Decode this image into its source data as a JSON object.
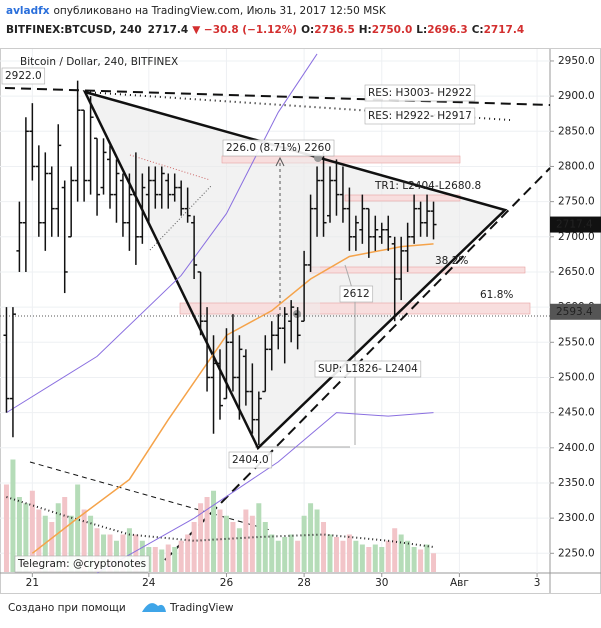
{
  "header": {
    "author": "avladfx",
    "published": "опубликовано на TradingView.com, Июль 31, 2017 12:50 MSK",
    "symbol": "BITFINEX:BTCUSD, 240",
    "last": "2717.4",
    "change": "▼ −30.8 (−1.12%)",
    "o_label": "O:",
    "o": "2736.5",
    "h_label": "H:",
    "h": "2750.0",
    "l_label": "L:",
    "l": "2696.3",
    "c_label": "C:",
    "c": "2717.4"
  },
  "footer": {
    "made_with": "Создано при помощи",
    "brand": "TradingView"
  },
  "chart_data": {
    "type": "ohlc",
    "title": "Bitcoin / Dollar, 240, BITFINEX",
    "x": [
      1,
      2,
      3,
      4,
      5,
      6,
      7,
      8,
      9,
      10,
      11,
      12,
      13,
      14,
      15,
      16,
      17,
      18,
      19,
      20,
      21,
      22,
      23,
      24,
      25,
      26,
      27,
      28,
      29,
      30,
      31,
      32,
      33,
      34,
      35,
      36,
      37,
      38,
      39,
      40,
      41,
      42,
      43,
      44,
      45,
      46,
      47,
      48,
      49,
      50,
      51,
      52,
      53,
      54,
      55,
      56,
      57,
      58,
      59,
      60,
      61,
      62,
      63,
      64,
      65,
      66,
      67
    ],
    "ohlc": [
      [
        2560,
        2600,
        2450,
        2470
      ],
      [
        2470,
        2600,
        2415,
        2590
      ],
      [
        2680,
        2750,
        2650,
        2720
      ],
      [
        2720,
        2870,
        2650,
        2850
      ],
      [
        2850,
        2890,
        2780,
        2800
      ],
      [
        2800,
        2830,
        2700,
        2720
      ],
      [
        2720,
        2820,
        2680,
        2790
      ],
      [
        2790,
        2800,
        2700,
        2740
      ],
      [
        2740,
        2860,
        2700,
        2830
      ],
      [
        2770,
        2780,
        2620,
        2650
      ],
      [
        2700,
        2800,
        2700,
        2780
      ],
      [
        2780,
        2922,
        2750,
        2880
      ],
      [
        2880,
        2880,
        2750,
        2780
      ],
      [
        2780,
        2900,
        2760,
        2870
      ],
      [
        2840,
        2840,
        2730,
        2760
      ],
      [
        2770,
        2840,
        2760,
        2820
      ],
      [
        2810,
        2830,
        2740,
        2760
      ],
      [
        2760,
        2810,
        2720,
        2790
      ],
      [
        2780,
        2790,
        2700,
        2720
      ],
      [
        2720,
        2790,
        2680,
        2760
      ],
      [
        2760,
        2820,
        2660,
        2700
      ],
      [
        2700,
        2790,
        2690,
        2770
      ],
      [
        2760,
        2800,
        2720,
        2780
      ],
      [
        2780,
        2800,
        2740,
        2760
      ],
      [
        2760,
        2800,
        2740,
        2790
      ],
      [
        2780,
        2790,
        2740,
        2760
      ],
      [
        2760,
        2790,
        2750,
        2770
      ],
      [
        2770,
        2780,
        2730,
        2740
      ],
      [
        2740,
        2770,
        2720,
        2730
      ],
      [
        2720,
        2730,
        2640,
        2660
      ],
      [
        2650,
        2650,
        2560,
        2580
      ],
      [
        2580,
        2600,
        2480,
        2500
      ],
      [
        2500,
        2560,
        2420,
        2520
      ],
      [
        2520,
        2540,
        2440,
        2460
      ],
      [
        2470,
        2570,
        2470,
        2550
      ],
      [
        2550,
        2590,
        2480,
        2500
      ],
      [
        2500,
        2560,
        2440,
        2540
      ],
      [
        2530,
        2540,
        2460,
        2480
      ],
      [
        2480,
        2520,
        2420,
        2440
      ],
      [
        2440,
        2480,
        2404,
        2470
      ],
      [
        2480,
        2560,
        2480,
        2540
      ],
      [
        2540,
        2580,
        2510,
        2560
      ],
      [
        2560,
        2590,
        2540,
        2570
      ],
      [
        2570,
        2600,
        2520,
        2590
      ],
      [
        2580,
        2610,
        2550,
        2600
      ],
      [
        2590,
        2600,
        2540,
        2560
      ],
      [
        2580,
        2680,
        2580,
        2660
      ],
      [
        2660,
        2760,
        2650,
        2740
      ],
      [
        2740,
        2800,
        2700,
        2780
      ],
      [
        2780,
        2820,
        2700,
        2720
      ],
      [
        2730,
        2800,
        2720,
        2780
      ],
      [
        2780,
        2810,
        2730,
        2760
      ],
      [
        2760,
        2800,
        2720,
        2740
      ],
      [
        2740,
        2770,
        2680,
        2700
      ],
      [
        2700,
        2730,
        2680,
        2720
      ],
      [
        2710,
        2760,
        2690,
        2740
      ],
      [
        2740,
        2740,
        2670,
        2700
      ],
      [
        2700,
        2730,
        2680,
        2710
      ],
      [
        2700,
        2720,
        2690,
        2710
      ],
      [
        2710,
        2730,
        2680,
        2700
      ],
      [
        2690,
        2700,
        2580,
        2640
      ],
      [
        2640,
        2700,
        2610,
        2680
      ],
      [
        2680,
        2720,
        2650,
        2700
      ],
      [
        2700,
        2760,
        2690,
        2740
      ],
      [
        2740,
        2750,
        2700,
        2720
      ],
      [
        2720,
        2760,
        2700,
        2736.5
      ],
      [
        2736.5,
        2750,
        2696.3,
        2717.4
      ]
    ],
    "color": "#111111",
    "volume": [
      70,
      90,
      60,
      55,
      65,
      50,
      45,
      40,
      55,
      60,
      45,
      70,
      50,
      45,
      35,
      30,
      30,
      25,
      30,
      35,
      30,
      25,
      20,
      20,
      18,
      22,
      20,
      25,
      30,
      40,
      55,
      60,
      65,
      50,
      45,
      40,
      35,
      50,
      45,
      55,
      40,
      30,
      25,
      28,
      30,
      25,
      45,
      55,
      50,
      40,
      30,
      28,
      25,
      30,
      25,
      22,
      20,
      22,
      20,
      25,
      35,
      30,
      25,
      20,
      18,
      22,
      15
    ],
    "volume_up_color": "#b5dcb8",
    "volume_down_color": "#f2c4c8",
    "volume_ma": {
      "color": "#222222",
      "x": [
        1,
        10,
        20,
        30,
        40,
        50,
        60,
        67
      ],
      "values": [
        60,
        45,
        30,
        25,
        28,
        30,
        25,
        20
      ]
    },
    "ma": {
      "color": "#f5a34a",
      "x": [
        5,
        12,
        20,
        26,
        35,
        42,
        48,
        54,
        62,
        67
      ],
      "values": [
        2250,
        2300,
        2355,
        2440,
        2560,
        2595,
        2640,
        2672,
        2686,
        2690
      ]
    },
    "band_upper": {
      "color": "#8a6fe0",
      "x": [
        1,
        15,
        28,
        35,
        43,
        49
      ],
      "values": [
        2450,
        2530,
        2645,
        2733,
        2877,
        2960
      ]
    },
    "band_lower": {
      "color": "#8a6fe0",
      "x": [
        15,
        30,
        43,
        52,
        60,
        67
      ],
      "values": [
        2222,
        2300,
        2380,
        2450,
        2445,
        2450
      ]
    },
    "xlim": [
      0,
      85
    ],
    "ylim": [
      2222,
      2967
    ],
    "xticks": [
      {
        "value": 5,
        "label": "21"
      },
      {
        "value": 23,
        "label": "24"
      },
      {
        "value": 35,
        "label": "26"
      },
      {
        "value": 47,
        "label": "28"
      },
      {
        "value": 59,
        "label": "30"
      },
      {
        "value": 71,
        "label": "Авг"
      },
      {
        "value": 83,
        "label": "3"
      }
    ],
    "yticks": [
      {
        "value": 2250,
        "label": "2250.0"
      },
      {
        "value": 2300,
        "label": "2300.0"
      },
      {
        "value": 2350,
        "label": "2350.0"
      },
      {
        "value": 2400,
        "label": "2400.0"
      },
      {
        "value": 2450,
        "label": "2450.0"
      },
      {
        "value": 2500,
        "label": "2500.0"
      },
      {
        "value": 2550,
        "label": "2550.0"
      },
      {
        "value": 2600,
        "label": "2600.0"
      },
      {
        "value": 2650,
        "label": "2650.0"
      },
      {
        "value": 2700,
        "label": "2700.0"
      },
      {
        "value": 2750,
        "label": "2750.0"
      },
      {
        "value": 2800,
        "label": "2800.0"
      },
      {
        "value": 2850,
        "label": "2850.0"
      },
      {
        "value": 2900,
        "label": "2900.0"
      },
      {
        "value": 2950,
        "label": "2950.0"
      }
    ],
    "grid": true,
    "last_price": 2717.4,
    "crosshair_price": 2593.4,
    "annotations": [
      "2922.0",
      "RES: H3003- H2922",
      "RES: H2922- H2917",
      "226.0 (8.71%) 2260",
      "TR1: L2404-L2680.8",
      "38.2%",
      "61.8%",
      "2612",
      "SUP: L1826- L2404",
      "2404.0",
      "Telegram: @cryptonotes"
    ]
  }
}
